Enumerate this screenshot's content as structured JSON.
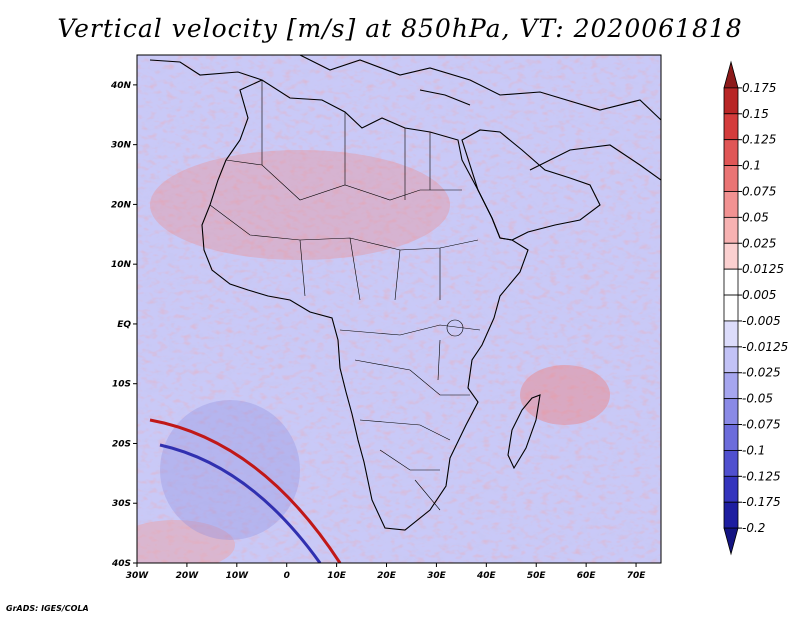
{
  "title": "Vertical velocity [m/s] at 850hPa, VT: 2020061818",
  "footer": "GrADS: IGES/COLA",
  "map": {
    "lon_ticks": [
      "30W",
      "20W",
      "10W",
      "0",
      "10E",
      "20E",
      "30E",
      "40E",
      "50E",
      "60E",
      "70E"
    ],
    "lat_ticks": [
      "40N",
      "30N",
      "20N",
      "10N",
      "EQ",
      "10S",
      "20S",
      "30S",
      "40S"
    ],
    "lon_range": [
      -30,
      75
    ],
    "lat_range": [
      -40,
      45
    ]
  },
  "colorbar": {
    "labels": [
      "0.175",
      "0.15",
      "0.125",
      "0.1",
      "0.075",
      "0.05",
      "0.025",
      "0.0125",
      "0.005",
      "-0.005",
      "-0.0125",
      "-0.025",
      "-0.05",
      "-0.075",
      "-0.1",
      "-0.125",
      "-0.175",
      "-0.2"
    ],
    "colors": [
      "#8c1a1a",
      "#b82626",
      "#d43c3c",
      "#e05656",
      "#ea7474",
      "#f29292",
      "#f7b2b2",
      "#fbd0d0",
      "#ffffff",
      "#ffffff",
      "#dcdcfb",
      "#c2c2f6",
      "#a6a6ef",
      "#8a8ae6",
      "#6c6cdb",
      "#5050cf",
      "#3434bd",
      "#1e1ea0",
      "#141482"
    ]
  }
}
